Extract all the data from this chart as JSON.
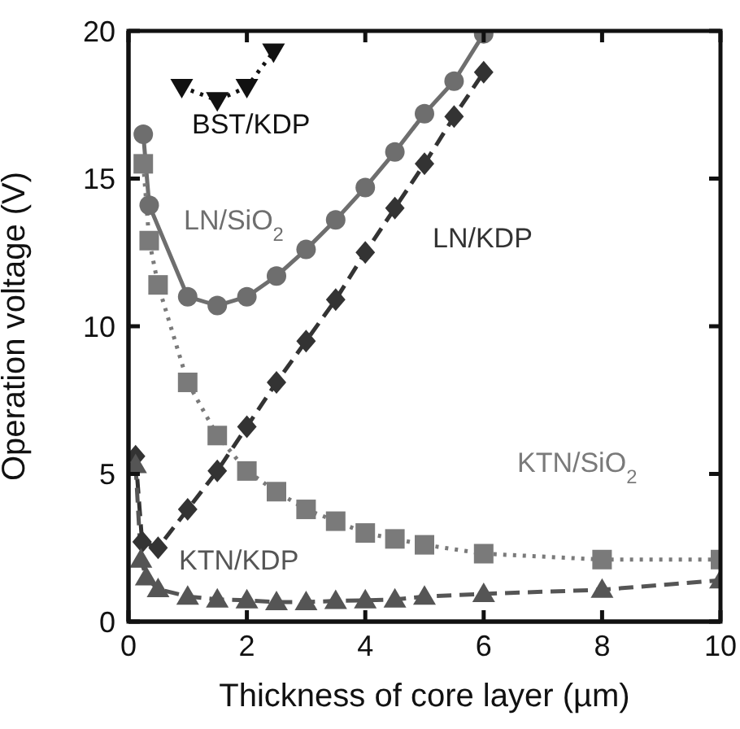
{
  "chart_data": {
    "type": "line",
    "xlabel": "Thickness of core layer (µm)",
    "ylabel": "Operation voltage (V)",
    "xlim": [
      0,
      10
    ],
    "xticks": [
      0,
      2,
      4,
      6,
      8,
      10
    ],
    "ylim": [
      0,
      20
    ],
    "yticks": [
      0,
      5,
      10,
      15,
      20
    ],
    "series": [
      {
        "name": "BST/KDP",
        "color": "#111111",
        "marker": "triangle-down",
        "line_style": "dotted",
        "x": [
          0.9,
          1.5,
          2.0,
          2.45
        ],
        "values": [
          18.1,
          17.65,
          18.1,
          19.3
        ]
      },
      {
        "name": "LN/SiO$_{2}$",
        "color": "#6e6e6e",
        "marker": "circle",
        "line_style": "solid",
        "x": [
          0.25,
          0.35,
          1.0,
          1.5,
          2.0,
          2.5,
          3.0,
          3.5,
          4.0,
          4.5,
          5.0,
          5.5,
          6.0
        ],
        "values": [
          16.5,
          14.1,
          11.0,
          10.7,
          11.0,
          11.7,
          12.6,
          13.6,
          14.7,
          15.9,
          17.2,
          18.3,
          19.9
        ]
      },
      {
        "name": "LN/KDP",
        "color": "#333333",
        "marker": "diamond",
        "line_style": "dashed",
        "x": [
          0.12,
          0.23,
          0.5,
          1.0,
          1.5,
          2.0,
          2.5,
          3.0,
          3.5,
          4.0,
          4.5,
          5.0,
          5.5,
          6.0
        ],
        "values": [
          5.6,
          2.7,
          2.5,
          3.8,
          5.1,
          6.6,
          8.1,
          9.5,
          10.9,
          12.5,
          14.0,
          15.5,
          17.1,
          18.6
        ]
      },
      {
        "name": "KTN/SiO$_{2}$",
        "color": "#7a7a7a",
        "marker": "square",
        "line_style": "dotted",
        "x": [
          0.25,
          0.35,
          0.5,
          1.0,
          1.5,
          2.0,
          2.5,
          3.0,
          3.5,
          4.0,
          4.5,
          5.0,
          6.0,
          8.0,
          10.0
        ],
        "values": [
          15.5,
          12.9,
          11.4,
          8.1,
          6.3,
          5.1,
          4.4,
          3.8,
          3.4,
          3.0,
          2.8,
          2.6,
          2.3,
          2.1,
          2.1
        ]
      },
      {
        "name": "KTN/KDP",
        "color": "#555555",
        "marker": "triangle",
        "line_style": "dashed",
        "x": [
          0.12,
          0.21,
          0.3,
          0.5,
          1.0,
          1.5,
          2.0,
          2.5,
          3.0,
          3.5,
          4.0,
          4.5,
          5.0,
          6.0,
          8.0,
          10.0
        ],
        "values": [
          5.3,
          2.1,
          1.5,
          1.1,
          0.85,
          0.75,
          0.72,
          0.66,
          0.66,
          0.7,
          0.72,
          0.75,
          0.85,
          0.94,
          1.08,
          1.4
        ]
      }
    ]
  }
}
